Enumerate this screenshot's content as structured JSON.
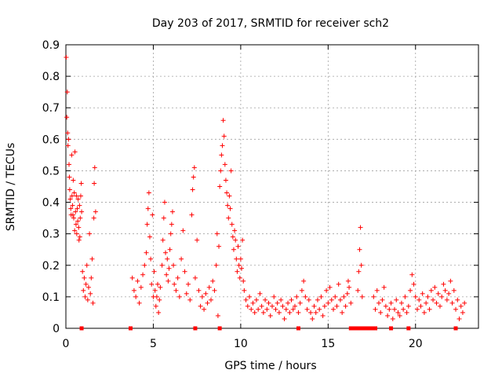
{
  "chart_data": {
    "type": "scatter",
    "title": "Day 203 of 2017, SRMTID for receiver sch2",
    "xlabel": "GPS time / hours",
    "ylabel": "SRMTID / TECUs",
    "xlim": [
      0,
      23.6
    ],
    "ylim": [
      0,
      0.9
    ],
    "xticks": [
      0,
      5,
      10,
      15,
      20
    ],
    "yticks": [
      0,
      0.1,
      0.2,
      0.3,
      0.4,
      0.5,
      0.6,
      0.7,
      0.8,
      0.9
    ],
    "xtick_labels": [
      "0",
      "5",
      "10",
      "15",
      "20"
    ],
    "ytick_labels": [
      "0",
      "0.1",
      "0.2",
      "0.3",
      "0.4",
      "0.5",
      "0.6",
      "0.7",
      "0.8",
      "0.9"
    ],
    "grid": true,
    "marker": "+",
    "color": "#ff0000",
    "series": [
      {
        "name": "SRMTID",
        "points": [
          [
            0.02,
            0.86
          ],
          [
            0.05,
            0.67
          ],
          [
            0.08,
            0.75
          ],
          [
            0.1,
            0.62
          ],
          [
            0.12,
            0.58
          ],
          [
            0.15,
            0.6
          ],
          [
            0.18,
            0.52
          ],
          [
            0.2,
            0.48
          ],
          [
            0.22,
            0.44
          ],
          [
            0.25,
            0.41
          ],
          [
            0.28,
            0.38
          ],
          [
            0.3,
            0.36
          ],
          [
            0.33,
            0.55
          ],
          [
            0.35,
            0.42
          ],
          [
            0.38,
            0.39
          ],
          [
            0.4,
            0.36
          ],
          [
            0.42,
            0.47
          ],
          [
            0.45,
            0.35
          ],
          [
            0.48,
            0.43
          ],
          [
            0.5,
            0.31
          ],
          [
            0.52,
            0.56
          ],
          [
            0.55,
            0.37
          ],
          [
            0.58,
            0.33
          ],
          [
            0.6,
            0.42
          ],
          [
            0.62,
            0.3
          ],
          [
            0.65,
            0.38
          ],
          [
            0.68,
            0.34
          ],
          [
            0.7,
            0.41
          ],
          [
            0.73,
            0.32
          ],
          [
            0.75,
            0.28
          ],
          [
            0.78,
            0.39
          ],
          [
            0.8,
            0.29
          ],
          [
            0.82,
            0.35
          ],
          [
            0.85,
            0.42
          ],
          [
            0.88,
            0.46
          ],
          [
            0.9,
            0.37
          ],
          [
            0.95,
            0.18
          ],
          [
            1.0,
            0.12
          ],
          [
            1.05,
            0.16
          ],
          [
            1.1,
            0.1
          ],
          [
            1.15,
            0.14
          ],
          [
            1.2,
            0.2
          ],
          [
            1.25,
            0.09
          ],
          [
            1.3,
            0.13
          ],
          [
            1.35,
            0.3
          ],
          [
            1.4,
            0.11
          ],
          [
            1.45,
            0.16
          ],
          [
            1.5,
            0.22
          ],
          [
            1.55,
            0.08
          ],
          [
            1.6,
            0.35
          ],
          [
            1.62,
            0.46
          ],
          [
            1.65,
            0.51
          ],
          [
            1.7,
            0.37
          ],
          [
            3.8,
            0.16
          ],
          [
            3.9,
            0.12
          ],
          [
            4.0,
            0.1
          ],
          [
            4.1,
            0.15
          ],
          [
            4.2,
            0.08
          ],
          [
            4.3,
            0.13
          ],
          [
            4.4,
            0.17
          ],
          [
            4.5,
            0.2
          ],
          [
            4.6,
            0.24
          ],
          [
            4.65,
            0.33
          ],
          [
            4.7,
            0.38
          ],
          [
            4.75,
            0.43
          ],
          [
            4.8,
            0.29
          ],
          [
            4.85,
            0.22
          ],
          [
            4.9,
            0.14
          ],
          [
            4.95,
            0.36
          ],
          [
            5.0,
            0.1
          ],
          [
            5.05,
            0.18
          ],
          [
            5.1,
            0.12
          ],
          [
            5.15,
            0.07
          ],
          [
            5.2,
            0.1
          ],
          [
            5.25,
            0.14
          ],
          [
            5.3,
            0.05
          ],
          [
            5.35,
            0.09
          ],
          [
            5.4,
            0.13
          ],
          [
            5.5,
            0.2
          ],
          [
            5.55,
            0.28
          ],
          [
            5.6,
            0.35
          ],
          [
            5.65,
            0.4
          ],
          [
            5.7,
            0.24
          ],
          [
            5.75,
            0.17
          ],
          [
            5.8,
            0.22
          ],
          [
            5.85,
            0.15
          ],
          [
            5.9,
            0.19
          ],
          [
            5.95,
            0.25
          ],
          [
            6.0,
            0.3
          ],
          [
            6.05,
            0.33
          ],
          [
            6.1,
            0.37
          ],
          [
            6.15,
            0.2
          ],
          [
            6.2,
            0.14
          ],
          [
            6.3,
            0.12
          ],
          [
            6.4,
            0.16
          ],
          [
            6.5,
            0.1
          ],
          [
            6.6,
            0.22
          ],
          [
            6.7,
            0.31
          ],
          [
            6.8,
            0.18
          ],
          [
            6.9,
            0.11
          ],
          [
            7.0,
            0.14
          ],
          [
            7.1,
            0.09
          ],
          [
            7.2,
            0.36
          ],
          [
            7.25,
            0.44
          ],
          [
            7.3,
            0.48
          ],
          [
            7.35,
            0.51
          ],
          [
            7.4,
            0.16
          ],
          [
            7.5,
            0.28
          ],
          [
            7.6,
            0.12
          ],
          [
            7.7,
            0.07
          ],
          [
            7.8,
            0.1
          ],
          [
            7.9,
            0.06
          ],
          [
            8.0,
            0.11
          ],
          [
            8.1,
            0.08
          ],
          [
            8.2,
            0.13
          ],
          [
            8.3,
            0.09
          ],
          [
            8.4,
            0.15
          ],
          [
            8.5,
            0.12
          ],
          [
            8.6,
            0.2
          ],
          [
            8.65,
            0.3
          ],
          [
            8.7,
            0.04
          ],
          [
            8.75,
            0.26
          ],
          [
            8.8,
            0.45
          ],
          [
            8.85,
            0.5
          ],
          [
            8.9,
            0.55
          ],
          [
            8.95,
            0.58
          ],
          [
            9.0,
            0.66
          ],
          [
            9.05,
            0.61
          ],
          [
            9.1,
            0.52
          ],
          [
            9.15,
            0.47
          ],
          [
            9.2,
            0.43
          ],
          [
            9.25,
            0.39
          ],
          [
            9.3,
            0.35
          ],
          [
            9.35,
            0.42
          ],
          [
            9.4,
            0.38
          ],
          [
            9.45,
            0.5
          ],
          [
            9.5,
            0.33
          ],
          [
            9.55,
            0.29
          ],
          [
            9.6,
            0.25
          ],
          [
            9.65,
            0.31
          ],
          [
            9.7,
            0.28
          ],
          [
            9.75,
            0.22
          ],
          [
            9.8,
            0.18
          ],
          [
            9.85,
            0.26
          ],
          [
            9.9,
            0.2
          ],
          [
            9.95,
            0.16
          ],
          [
            10.0,
            0.22
          ],
          [
            10.05,
            0.19
          ],
          [
            10.1,
            0.28
          ],
          [
            10.15,
            0.15
          ],
          [
            10.2,
            0.12
          ],
          [
            10.3,
            0.09
          ],
          [
            10.4,
            0.07
          ],
          [
            10.5,
            0.1
          ],
          [
            10.6,
            0.06
          ],
          [
            10.7,
            0.08
          ],
          [
            10.8,
            0.05
          ],
          [
            10.9,
            0.09
          ],
          [
            11.0,
            0.06
          ],
          [
            11.1,
            0.11
          ],
          [
            11.2,
            0.07
          ],
          [
            11.3,
            0.05
          ],
          [
            11.4,
            0.09
          ],
          [
            11.5,
            0.06
          ],
          [
            11.6,
            0.08
          ],
          [
            11.7,
            0.04
          ],
          [
            11.8,
            0.07
          ],
          [
            11.9,
            0.1
          ],
          [
            12.0,
            0.06
          ],
          [
            12.1,
            0.08
          ],
          [
            12.2,
            0.05
          ],
          [
            12.3,
            0.09
          ],
          [
            12.4,
            0.07
          ],
          [
            12.5,
            0.03
          ],
          [
            12.6,
            0.06
          ],
          [
            12.7,
            0.08
          ],
          [
            12.8,
            0.05
          ],
          [
            12.9,
            0.09
          ],
          [
            13.0,
            0.06
          ],
          [
            13.1,
            0.07
          ],
          [
            13.2,
            0.1
          ],
          [
            13.3,
            0.05
          ],
          [
            13.4,
            0.08
          ],
          [
            13.5,
            0.12
          ],
          [
            13.6,
            0.15
          ],
          [
            13.7,
            0.1
          ],
          [
            13.8,
            0.06
          ],
          [
            13.9,
            0.09
          ],
          [
            14.0,
            0.05
          ],
          [
            14.1,
            0.03
          ],
          [
            14.2,
            0.07
          ],
          [
            14.3,
            0.05
          ],
          [
            14.4,
            0.09
          ],
          [
            14.5,
            0.06
          ],
          [
            14.6,
            0.1
          ],
          [
            14.7,
            0.04
          ],
          [
            14.8,
            0.07
          ],
          [
            14.9,
            0.12
          ],
          [
            15.0,
            0.08
          ],
          [
            15.1,
            0.13
          ],
          [
            15.2,
            0.09
          ],
          [
            15.3,
            0.06
          ],
          [
            15.4,
            0.1
          ],
          [
            15.5,
            0.07
          ],
          [
            15.6,
            0.14
          ],
          [
            15.7,
            0.09
          ],
          [
            15.8,
            0.05
          ],
          [
            15.9,
            0.1
          ],
          [
            16.0,
            0.07
          ],
          [
            16.1,
            0.11
          ],
          [
            16.15,
            0.15
          ],
          [
            16.2,
            0.13
          ],
          [
            16.3,
            0.08
          ],
          [
            16.7,
            0.12
          ],
          [
            16.75,
            0.18
          ],
          [
            16.8,
            0.25
          ],
          [
            16.85,
            0.32
          ],
          [
            16.9,
            0.2
          ],
          [
            16.95,
            0.1
          ],
          [
            17.6,
            0.1
          ],
          [
            17.7,
            0.06
          ],
          [
            17.8,
            0.12
          ],
          [
            17.9,
            0.08
          ],
          [
            18.0,
            0.05
          ],
          [
            18.1,
            0.09
          ],
          [
            18.2,
            0.13
          ],
          [
            18.3,
            0.07
          ],
          [
            18.4,
            0.04
          ],
          [
            18.5,
            0.06
          ],
          [
            18.6,
            0.08
          ],
          [
            18.7,
            0.03
          ],
          [
            18.8,
            0.06
          ],
          [
            18.9,
            0.09
          ],
          [
            19.0,
            0.05
          ],
          [
            19.1,
            0.04
          ],
          [
            19.2,
            0.08
          ],
          [
            19.3,
            0.06
          ],
          [
            19.4,
            0.1
          ],
          [
            19.5,
            0.05
          ],
          [
            19.6,
            0.07
          ],
          [
            19.7,
            0.12
          ],
          [
            19.8,
            0.17
          ],
          [
            19.9,
            0.14
          ],
          [
            20.0,
            0.1
          ],
          [
            20.1,
            0.06
          ],
          [
            20.2,
            0.09
          ],
          [
            20.3,
            0.07
          ],
          [
            20.4,
            0.11
          ],
          [
            20.5,
            0.05
          ],
          [
            20.6,
            0.08
          ],
          [
            20.7,
            0.1
          ],
          [
            20.8,
            0.06
          ],
          [
            20.9,
            0.12
          ],
          [
            21.0,
            0.09
          ],
          [
            21.1,
            0.13
          ],
          [
            21.2,
            0.08
          ],
          [
            21.3,
            0.11
          ],
          [
            21.4,
            0.07
          ],
          [
            21.5,
            0.1
          ],
          [
            21.6,
            0.14
          ],
          [
            21.7,
            0.12
          ],
          [
            21.8,
            0.09
          ],
          [
            21.9,
            0.11
          ],
          [
            22.0,
            0.15
          ],
          [
            22.1,
            0.08
          ],
          [
            22.2,
            0.12
          ],
          [
            22.3,
            0.06
          ],
          [
            22.4,
            0.09
          ],
          [
            22.5,
            0.03
          ],
          [
            22.6,
            0.07
          ],
          [
            22.7,
            0.05
          ],
          [
            22.8,
            0.08
          ]
        ]
      }
    ],
    "zero_markers": [
      0.9,
      3.7,
      7.4,
      8.8,
      13.3,
      16.3,
      16.5,
      16.7,
      16.9,
      17.1,
      17.3,
      17.5,
      17.7,
      18.6,
      19.6,
      22.3
    ]
  }
}
